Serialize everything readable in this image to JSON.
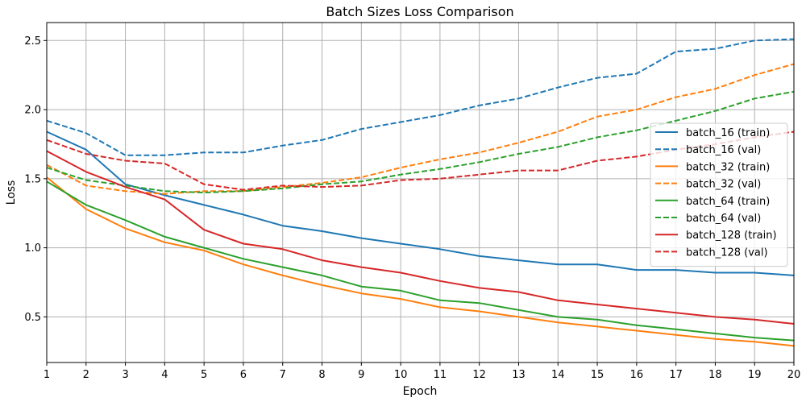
{
  "chart_data": {
    "type": "line",
    "title": "Batch Sizes Loss Comparison",
    "xlabel": "Epoch",
    "ylabel": "Loss",
    "xlim": [
      1,
      20
    ],
    "ylim": [
      0.17,
      2.63
    ],
    "xticks": [
      1,
      2,
      3,
      4,
      5,
      6,
      7,
      8,
      9,
      10,
      11,
      12,
      13,
      14,
      15,
      16,
      17,
      18,
      19,
      20
    ],
    "yticks": [
      0.5,
      1.0,
      1.5,
      2.0,
      2.5
    ],
    "ytick_labels": [
      "0.5",
      "1.0",
      "1.5",
      "2.0",
      "2.5"
    ],
    "grid": true,
    "legend_position": "center-right",
    "x": [
      1,
      2,
      3,
      4,
      5,
      6,
      7,
      8,
      9,
      10,
      11,
      12,
      13,
      14,
      15,
      16,
      17,
      18,
      19,
      20
    ],
    "series": [
      {
        "name": "batch_16 (train)",
        "color": "#1f77b4",
        "dash": false,
        "values": [
          1.84,
          1.71,
          1.46,
          1.38,
          1.31,
          1.24,
          1.16,
          1.12,
          1.07,
          1.03,
          0.99,
          0.94,
          0.91,
          0.88,
          0.88,
          0.84,
          0.84,
          0.82,
          0.82,
          0.8
        ]
      },
      {
        "name": "batch_16 (val)",
        "color": "#1f77b4",
        "dash": true,
        "values": [
          1.92,
          1.83,
          1.67,
          1.67,
          1.69,
          1.69,
          1.74,
          1.78,
          1.86,
          1.91,
          1.96,
          2.03,
          2.08,
          2.16,
          2.23,
          2.26,
          2.42,
          2.44,
          2.5,
          2.51
        ]
      },
      {
        "name": "batch_32 (train)",
        "color": "#ff7f0e",
        "dash": false,
        "values": [
          1.51,
          1.28,
          1.14,
          1.04,
          0.98,
          0.88,
          0.8,
          0.73,
          0.67,
          0.63,
          0.57,
          0.54,
          0.5,
          0.46,
          0.43,
          0.4,
          0.37,
          0.34,
          0.32,
          0.29
        ]
      },
      {
        "name": "batch_32 (val)",
        "color": "#ff7f0e",
        "dash": true,
        "values": [
          1.6,
          1.45,
          1.41,
          1.39,
          1.41,
          1.41,
          1.44,
          1.47,
          1.51,
          1.58,
          1.64,
          1.69,
          1.76,
          1.84,
          1.95,
          2.0,
          2.09,
          2.15,
          2.25,
          2.33
        ]
      },
      {
        "name": "batch_64 (train)",
        "color": "#2ca02c",
        "dash": false,
        "values": [
          1.48,
          1.31,
          1.2,
          1.08,
          1.0,
          0.92,
          0.86,
          0.8,
          0.72,
          0.69,
          0.62,
          0.6,
          0.55,
          0.5,
          0.48,
          0.44,
          0.41,
          0.38,
          0.35,
          0.33
        ]
      },
      {
        "name": "batch_64 (val)",
        "color": "#2ca02c",
        "dash": true,
        "values": [
          1.58,
          1.49,
          1.45,
          1.41,
          1.4,
          1.41,
          1.43,
          1.46,
          1.48,
          1.53,
          1.57,
          1.62,
          1.68,
          1.73,
          1.8,
          1.85,
          1.92,
          1.99,
          2.08,
          2.13
        ]
      },
      {
        "name": "batch_128 (train)",
        "color": "#d62728",
        "dash": false,
        "values": [
          1.7,
          1.55,
          1.44,
          1.35,
          1.13,
          1.03,
          0.99,
          0.91,
          0.86,
          0.82,
          0.76,
          0.71,
          0.68,
          0.62,
          0.59,
          0.56,
          0.53,
          0.5,
          0.48,
          0.45
        ]
      },
      {
        "name": "batch_128 (val)",
        "color": "#d62728",
        "dash": true,
        "values": [
          1.78,
          1.68,
          1.63,
          1.61,
          1.46,
          1.42,
          1.45,
          1.44,
          1.45,
          1.49,
          1.5,
          1.53,
          1.56,
          1.56,
          1.63,
          1.66,
          1.71,
          1.75,
          1.8,
          1.84
        ]
      }
    ]
  }
}
